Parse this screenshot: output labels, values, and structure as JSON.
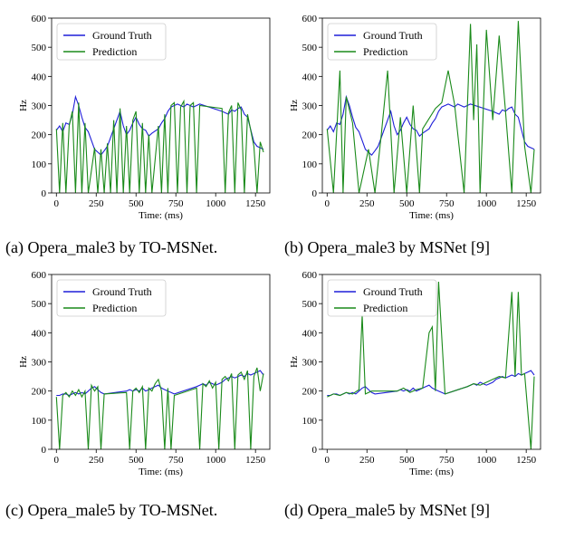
{
  "colors": {
    "ground_truth": "#1f1fd8",
    "prediction": "#1a8a1a"
  },
  "captions": [
    "(a) Opera_male3 by TO-MSNet.",
    "(b) Opera_male3 by MSNet [9]",
    "(c) Opera_male5 by TO-MSNet.",
    "(d) Opera_male5 by MSNet [9]"
  ],
  "chart_data": [
    {
      "id": "a",
      "type": "line",
      "title": "",
      "xlabel": "Time: (ms)",
      "ylabel": "Hz",
      "xlim": [
        -30,
        1340
      ],
      "ylim": [
        0,
        600
      ],
      "xticks": [
        0,
        250,
        500,
        750,
        1000,
        1250
      ],
      "yticks": [
        0,
        100,
        200,
        300,
        400,
        500,
        600
      ],
      "legend": {
        "position": "top-left",
        "entries": [
          "Ground Truth",
          "Prediction"
        ]
      },
      "series": [
        {
          "name": "Ground Truth",
          "x": [
            0,
            20,
            40,
            60,
            80,
            100,
            120,
            140,
            160,
            180,
            200,
            240,
            260,
            280,
            300,
            320,
            340,
            360,
            380,
            400,
            420,
            440,
            460,
            480,
            500,
            520,
            540,
            560,
            580,
            600,
            640,
            660,
            680,
            700,
            720,
            740,
            760,
            780,
            800,
            820,
            840,
            860,
            880,
            900,
            1040,
            1060,
            1080,
            1100,
            1120,
            1140,
            1160,
            1180,
            1200,
            1240,
            1260,
            1280,
            1300
          ],
          "y": [
            215,
            230,
            210,
            240,
            235,
            270,
            330,
            300,
            260,
            225,
            210,
            150,
            140,
            130,
            145,
            160,
            190,
            220,
            250,
            280,
            230,
            200,
            215,
            240,
            260,
            235,
            220,
            215,
            195,
            205,
            220,
            240,
            255,
            280,
            295,
            300,
            305,
            300,
            295,
            305,
            300,
            295,
            300,
            305,
            280,
            275,
            270,
            285,
            280,
            290,
            295,
            270,
            260,
            175,
            160,
            155,
            150
          ]
        },
        {
          "name": "Prediction",
          "x": [
            0,
            20,
            40,
            60,
            80,
            100,
            120,
            140,
            160,
            180,
            200,
            240,
            260,
            280,
            300,
            320,
            340,
            360,
            380,
            400,
            420,
            440,
            460,
            480,
            500,
            520,
            540,
            560,
            580,
            600,
            640,
            660,
            680,
            700,
            720,
            740,
            760,
            780,
            800,
            820,
            840,
            860,
            880,
            900,
            1040,
            1060,
            1080,
            1100,
            1120,
            1140,
            1160,
            1180,
            1200,
            1240,
            1260,
            1280,
            1300
          ],
          "y": [
            220,
            0,
            240,
            0,
            230,
            280,
            0,
            310,
            0,
            240,
            0,
            155,
            0,
            150,
            0,
            170,
            0,
            250,
            0,
            290,
            0,
            230,
            0,
            250,
            280,
            0,
            240,
            0,
            200,
            0,
            230,
            0,
            270,
            0,
            300,
            310,
            0,
            295,
            315,
            0,
            300,
            310,
            0,
            300,
            290,
            0,
            275,
            300,
            0,
            310,
            285,
            0,
            270,
            160,
            0,
            175,
            140
          ]
        }
      ]
    },
    {
      "id": "b",
      "type": "line",
      "title": "",
      "xlabel": "Time: (ms)",
      "ylabel": "Hz",
      "xlim": [
        -30,
        1340
      ],
      "ylim": [
        0,
        600
      ],
      "xticks": [
        0,
        250,
        500,
        750,
        1000,
        1250
      ],
      "yticks": [
        0,
        100,
        200,
        300,
        400,
        500,
        600
      ],
      "legend": {
        "position": "top-left",
        "entries": [
          "Ground Truth",
          "Prediction"
        ]
      },
      "series": [
        {
          "name": "Ground Truth",
          "x": [
            0,
            20,
            40,
            60,
            80,
            100,
            120,
            140,
            160,
            180,
            200,
            240,
            260,
            280,
            300,
            320,
            340,
            360,
            380,
            400,
            420,
            440,
            460,
            480,
            500,
            520,
            540,
            560,
            580,
            600,
            640,
            660,
            680,
            700,
            720,
            740,
            760,
            780,
            800,
            820,
            840,
            860,
            880,
            900,
            1040,
            1060,
            1080,
            1100,
            1120,
            1140,
            1160,
            1180,
            1200,
            1240,
            1260,
            1280,
            1300
          ],
          "y": [
            215,
            230,
            210,
            240,
            235,
            270,
            330,
            300,
            260,
            225,
            210,
            150,
            140,
            130,
            145,
            160,
            190,
            220,
            250,
            280,
            230,
            200,
            215,
            240,
            260,
            235,
            220,
            215,
            195,
            205,
            220,
            240,
            255,
            280,
            295,
            300,
            305,
            300,
            295,
            305,
            300,
            295,
            300,
            305,
            280,
            275,
            270,
            285,
            280,
            290,
            295,
            270,
            260,
            175,
            160,
            155,
            150
          ]
        },
        {
          "name": "Prediction",
          "x": [
            0,
            40,
            80,
            100,
            120,
            160,
            200,
            260,
            300,
            340,
            380,
            420,
            460,
            500,
            540,
            580,
            600,
            680,
            720,
            760,
            800,
            860,
            900,
            920,
            940,
            960,
            1000,
            1040,
            1080,
            1120,
            1160,
            1200,
            1240,
            1280,
            1300
          ],
          "y": [
            220,
            0,
            420,
            0,
            330,
            240,
            0,
            150,
            0,
            200,
            420,
            0,
            260,
            0,
            300,
            0,
            220,
            290,
            310,
            420,
            305,
            0,
            580,
            250,
            510,
            0,
            560,
            250,
            540,
            280,
            0,
            590,
            160,
            0,
            150
          ]
        }
      ]
    },
    {
      "id": "c",
      "type": "line",
      "title": "",
      "xlabel": "Time: (ms)",
      "ylabel": "Hz",
      "xlim": [
        -30,
        1340
      ],
      "ylim": [
        0,
        600
      ],
      "xticks": [
        0,
        250,
        500,
        750,
        1000,
        1250
      ],
      "yticks": [
        0,
        100,
        200,
        300,
        400,
        500,
        600
      ],
      "legend": {
        "position": "top-left",
        "entries": [
          "Ground Truth",
          "Prediction"
        ]
      },
      "series": [
        {
          "name": "Ground Truth",
          "x": [
            0,
            20,
            40,
            60,
            80,
            100,
            120,
            140,
            160,
            180,
            200,
            220,
            240,
            260,
            280,
            300,
            440,
            460,
            480,
            500,
            520,
            540,
            560,
            580,
            600,
            620,
            640,
            660,
            680,
            700,
            720,
            740,
            880,
            900,
            920,
            940,
            960,
            980,
            1000,
            1020,
            1040,
            1060,
            1080,
            1100,
            1120,
            1140,
            1160,
            1180,
            1200,
            1220,
            1240,
            1260,
            1280,
            1300
          ],
          "y": [
            185,
            185,
            190,
            190,
            185,
            190,
            195,
            190,
            195,
            190,
            200,
            210,
            215,
            205,
            195,
            190,
            200,
            205,
            200,
            205,
            200,
            210,
            200,
            205,
            210,
            215,
            220,
            210,
            205,
            200,
            195,
            190,
            215,
            220,
            225,
            220,
            230,
            225,
            220,
            225,
            230,
            240,
            245,
            250,
            245,
            250,
            255,
            250,
            260,
            255,
            260,
            265,
            270,
            255
          ]
        },
        {
          "name": "Prediction",
          "x": [
            0,
            20,
            40,
            60,
            80,
            100,
            120,
            140,
            160,
            180,
            200,
            220,
            240,
            260,
            280,
            300,
            440,
            460,
            480,
            500,
            520,
            540,
            560,
            580,
            600,
            620,
            640,
            660,
            680,
            700,
            720,
            740,
            880,
            900,
            920,
            940,
            960,
            980,
            1000,
            1020,
            1040,
            1060,
            1080,
            1100,
            1120,
            1140,
            1160,
            1180,
            1200,
            1220,
            1240,
            1260,
            1280,
            1300
          ],
          "y": [
            180,
            0,
            185,
            195,
            180,
            200,
            185,
            205,
            180,
            200,
            0,
            220,
            200,
            215,
            0,
            190,
            195,
            0,
            200,
            210,
            195,
            215,
            0,
            210,
            200,
            225,
            240,
            200,
            0,
            210,
            0,
            185,
            210,
            0,
            225,
            215,
            235,
            210,
            230,
            0,
            240,
            250,
            235,
            260,
            0,
            255,
            265,
            240,
            270,
            0,
            250,
            280,
            200,
            260
          ]
        }
      ]
    },
    {
      "id": "d",
      "type": "line",
      "title": "",
      "xlabel": "Time: (ms)",
      "ylabel": "Hz",
      "xlim": [
        -30,
        1340
      ],
      "ylim": [
        0,
        600
      ],
      "xticks": [
        0,
        250,
        500,
        750,
        1000,
        1250
      ],
      "yticks": [
        0,
        100,
        200,
        300,
        400,
        500,
        600
      ],
      "legend": {
        "position": "top-left",
        "entries": [
          "Ground Truth",
          "Prediction"
        ]
      },
      "series": [
        {
          "name": "Ground Truth",
          "x": [
            0,
            20,
            40,
            60,
            80,
            100,
            120,
            140,
            160,
            180,
            200,
            220,
            240,
            260,
            280,
            300,
            440,
            460,
            480,
            500,
            520,
            540,
            560,
            580,
            600,
            620,
            640,
            660,
            680,
            700,
            720,
            740,
            880,
            900,
            920,
            940,
            960,
            980,
            1000,
            1020,
            1040,
            1060,
            1080,
            1100,
            1120,
            1140,
            1160,
            1180,
            1200,
            1220,
            1240,
            1260,
            1280,
            1300
          ],
          "y": [
            185,
            185,
            190,
            190,
            185,
            190,
            195,
            190,
            195,
            190,
            200,
            210,
            215,
            205,
            195,
            190,
            200,
            205,
            200,
            205,
            200,
            210,
            200,
            205,
            210,
            215,
            220,
            210,
            205,
            200,
            195,
            190,
            215,
            220,
            225,
            220,
            230,
            225,
            220,
            225,
            230,
            240,
            245,
            250,
            245,
            250,
            255,
            250,
            260,
            255,
            260,
            265,
            270,
            255
          ]
        },
        {
          "name": "Prediction",
          "x": [
            0,
            40,
            80,
            120,
            160,
            200,
            220,
            240,
            280,
            440,
            480,
            520,
            560,
            600,
            640,
            660,
            680,
            700,
            740,
            880,
            920,
            960,
            1000,
            1040,
            1080,
            1120,
            1160,
            1180,
            1200,
            1220,
            1240,
            1280,
            1300
          ],
          "y": [
            180,
            190,
            185,
            195,
            190,
            205,
            460,
            190,
            200,
            200,
            210,
            195,
            205,
            210,
            400,
            420,
            200,
            575,
            190,
            215,
            225,
            220,
            230,
            240,
            250,
            245,
            540,
            250,
            540,
            255,
            260,
            0,
            250
          ]
        }
      ]
    }
  ]
}
